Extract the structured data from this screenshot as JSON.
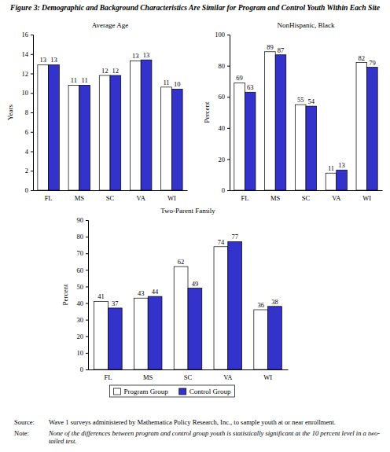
{
  "title": "Figure 3:  Demographic and Background Characteristics Are Similar for Program and Control Youth Within Each Site",
  "source_label": "Source:",
  "source": "Wave 1 surveys administered by Mathematica Policy Research, Inc., to sample youth at or near enrollment.",
  "note_label": "Note:",
  "note": "None of the differences between program and control group youth is statistically significant at the 10 percent level in a two-tailed test.",
  "chart_data": [
    {
      "type": "bar",
      "title": "Average Age",
      "y_label": "Years",
      "categories": [
        "FL",
        "MS",
        "SC",
        "VA",
        "WI"
      ],
      "series": [
        {
          "name": "Program Group",
          "color": "#ffffff",
          "values": [
            12.9,
            10.8,
            11.8,
            13.3,
            10.6
          ],
          "value_labels": [
            "13",
            "11",
            "12",
            "13",
            "11"
          ]
        },
        {
          "name": "Control Group",
          "color": "#3333cc",
          "values": [
            12.9,
            10.8,
            11.8,
            13.4,
            10.4
          ],
          "value_labels": [
            "13",
            "11",
            "12",
            "13",
            "10"
          ]
        }
      ],
      "ylim": [
        0,
        16
      ],
      "yticks": [
        0,
        2,
        4,
        6,
        8,
        10,
        12,
        14,
        16
      ],
      "data_labels": true
    },
    {
      "type": "bar",
      "title": "NonHispanic, Black",
      "y_label": "Percent",
      "categories": [
        "FL",
        "MS",
        "SC",
        "VA",
        "WI"
      ],
      "series": [
        {
          "name": "Program Group",
          "color": "#ffffff",
          "values": [
            69,
            89,
            55,
            11,
            82
          ]
        },
        {
          "name": "Control Group",
          "color": "#3333cc",
          "values": [
            63,
            87,
            54,
            13,
            79
          ]
        }
      ],
      "ylim": [
        0,
        100
      ],
      "yticks": [
        0,
        20,
        40,
        60,
        80,
        100
      ],
      "data_labels": true
    },
    {
      "type": "bar",
      "title": "Two-Parent Family",
      "y_label": "Percent",
      "categories": [
        "FL",
        "MS",
        "SC",
        "VA",
        "WI"
      ],
      "series": [
        {
          "name": "Program Group",
          "color": "#ffffff",
          "values": [
            41,
            43,
            62,
            74,
            36
          ]
        },
        {
          "name": "Control Group",
          "color": "#3333cc",
          "values": [
            37,
            44,
            49,
            77,
            38
          ]
        }
      ],
      "ylim": [
        0,
        90
      ],
      "yticks": [
        0,
        10,
        20,
        30,
        40,
        50,
        60,
        70,
        80,
        90
      ],
      "data_labels": true,
      "legend": "bottom"
    }
  ]
}
